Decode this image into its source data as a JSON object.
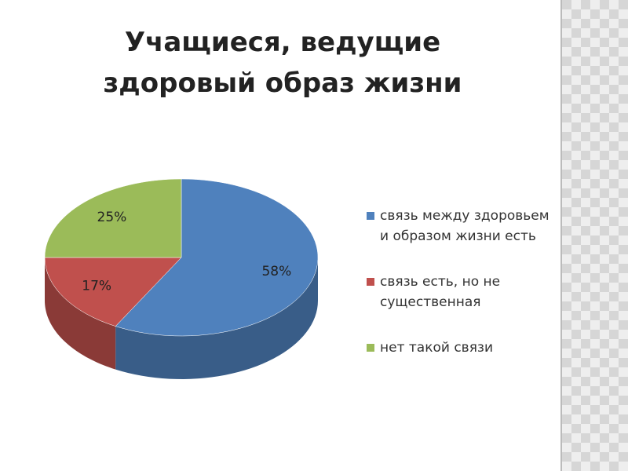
{
  "chart_data": {
    "type": "pie3d",
    "title": "Учащиеся, ведущие здоровый образ жизни",
    "series": [
      {
        "name": "связь между здоровьем и образом жизни есть",
        "color": "#4f81bd",
        "values": [
          58
        ],
        "value_labels": [
          "58%"
        ]
      },
      {
        "name": "связь есть, но не существенная",
        "color": "#c0504d",
        "values": [
          17
        ],
        "value_labels": [
          "17%"
        ]
      },
      {
        "name": "нет такой связи",
        "color": "#9bbb59",
        "values": [
          25
        ],
        "value_labels": [
          "25%"
        ]
      }
    ]
  }
}
